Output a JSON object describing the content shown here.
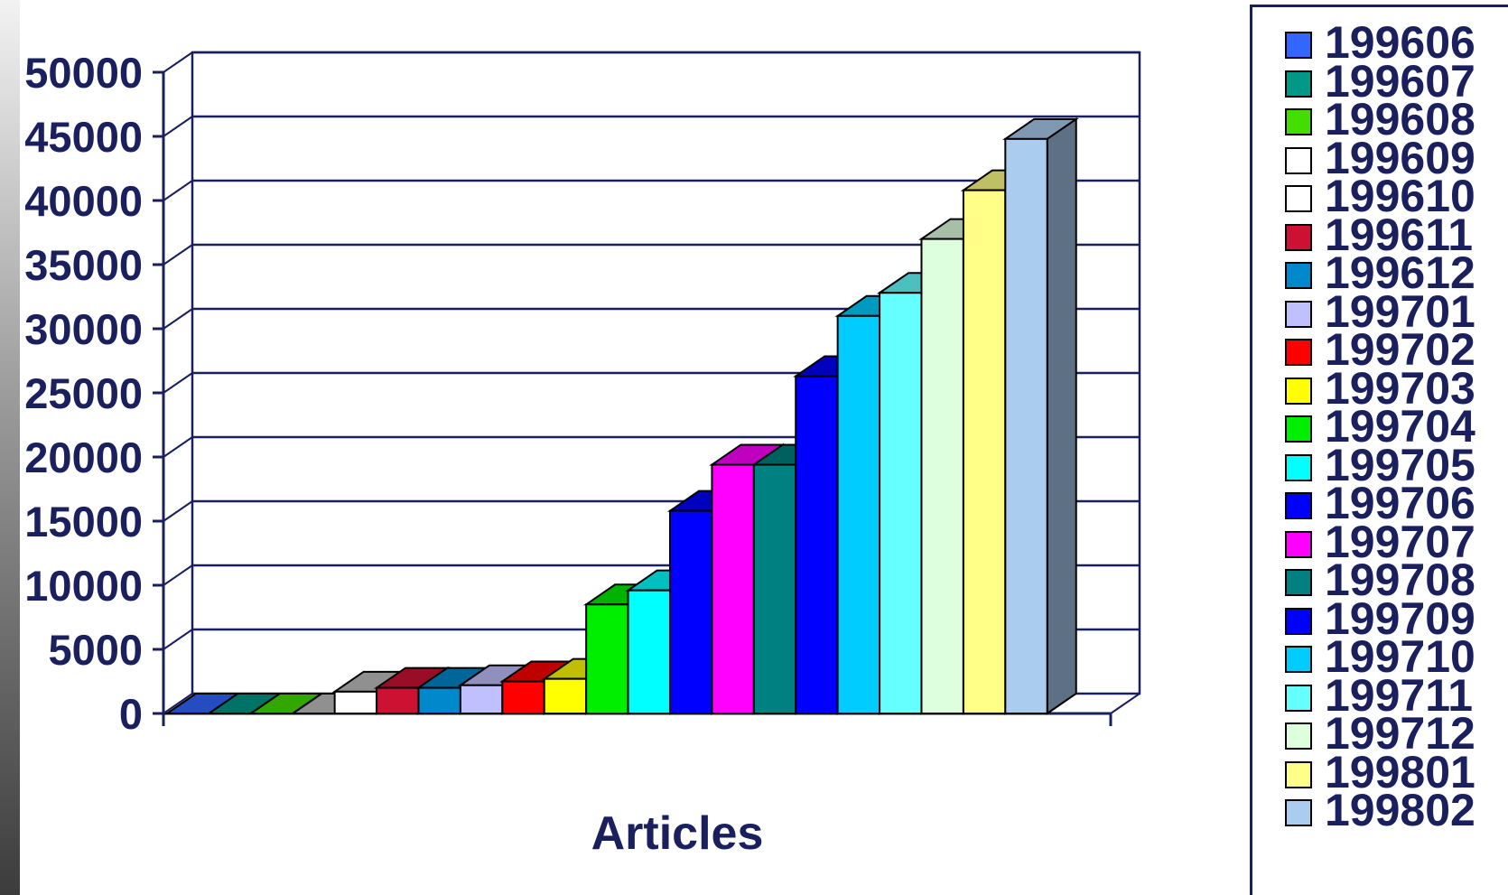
{
  "chart_data": {
    "type": "bar",
    "xlabel": "Articles",
    "ylabel": "",
    "ylim": [
      0,
      50000
    ],
    "yticks": [
      "0",
      "5000",
      "10000",
      "15000",
      "20000",
      "25000",
      "30000",
      "35000",
      "40000",
      "45000",
      "50000"
    ],
    "grid": true,
    "legend_position": "right",
    "three_d": true,
    "series": [
      {
        "name": "199606",
        "value": 0,
        "color": "#3366ff"
      },
      {
        "name": "199607",
        "value": 0,
        "color": "#009988"
      },
      {
        "name": "199608",
        "value": 0,
        "color": "#44dd00"
      },
      {
        "name": "199609",
        "value": 0,
        "color": "#ffffff"
      },
      {
        "name": "199610",
        "value": 1700,
        "color": "#ffffff"
      },
      {
        "name": "199611",
        "value": 2000,
        "color": "#cc1133"
      },
      {
        "name": "199612",
        "value": 2000,
        "color": "#0088cc"
      },
      {
        "name": "199701",
        "value": 2200,
        "color": "#c0c0ff"
      },
      {
        "name": "199702",
        "value": 2500,
        "color": "#ff0000"
      },
      {
        "name": "199703",
        "value": 2700,
        "color": "#ffff00"
      },
      {
        "name": "199704",
        "value": 8500,
        "color": "#00ee00"
      },
      {
        "name": "199705",
        "value": 9600,
        "color": "#00ffff"
      },
      {
        "name": "199706",
        "value": 15800,
        "color": "#0000ff"
      },
      {
        "name": "199707",
        "value": 19400,
        "color": "#ff00ff"
      },
      {
        "name": "199708",
        "value": 19400,
        "color": "#008080"
      },
      {
        "name": "199709",
        "value": 26300,
        "color": "#0000ff"
      },
      {
        "name": "199710",
        "value": 31000,
        "color": "#00ccff"
      },
      {
        "name": "199711",
        "value": 32800,
        "color": "#66ffff"
      },
      {
        "name": "199712",
        "value": 37000,
        "color": "#ddffdd"
      },
      {
        "name": "199801",
        "value": 40800,
        "color": "#ffff88"
      },
      {
        "name": "199802",
        "value": 44800,
        "color": "#aaccee"
      }
    ]
  }
}
